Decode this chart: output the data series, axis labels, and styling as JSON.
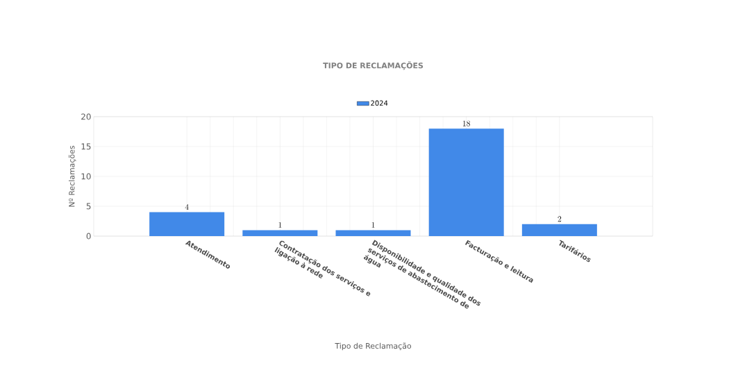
{
  "chart_data": {
    "type": "bar",
    "title": "TIPO DE RECLAMAÇÕES",
    "xlabel": "Tipo de Reclamação",
    "ylabel": "Nº Reclamações",
    "categories": [
      "Atendimento",
      "Contratação dos serviços e ligação à rede",
      "Disponibilidade e qualidade dos serviços de abastecimento de água",
      "Facturação e leitura",
      "Tarifários"
    ],
    "series": [
      {
        "name": "2024",
        "color": "#4189e8",
        "values": [
          4,
          1,
          1,
          18,
          2
        ]
      }
    ],
    "ylim": [
      0,
      20
    ],
    "yticks": [
      0,
      5,
      10,
      15,
      20
    ],
    "grid": true,
    "legend": "top",
    "data_labels": true
  }
}
